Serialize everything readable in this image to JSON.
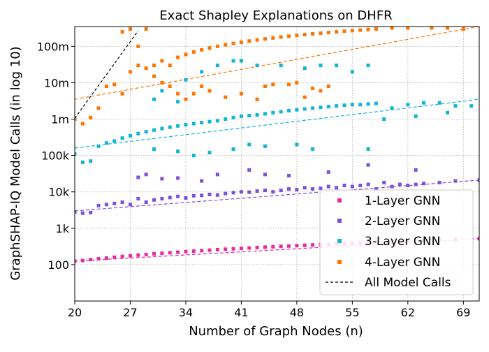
{
  "chart_data": {
    "type": "scatter",
    "title": "Exact Shapley Explanations on DHFR",
    "xlabel": "Number of Graph Nodes (n)",
    "ylabel": "GraphSHAP-IQ Model Calls (in log 10)",
    "xlim": [
      20,
      71
    ],
    "ylim": [
      10,
      350000000
    ],
    "yscale": "log",
    "grid": true,
    "legend_position": "lower-right",
    "x_ticks": [
      20,
      27,
      34,
      41,
      48,
      55,
      62,
      69
    ],
    "x_tick_labels": [
      "20",
      "27",
      "34",
      "41",
      "48",
      "55",
      "62",
      "69"
    ],
    "y_ticks": [
      100,
      1000,
      10000,
      100000,
      1000000,
      10000000,
      100000000
    ],
    "y_tick_labels": [
      "100",
      "1k",
      "10k",
      "100k",
      "1m",
      "10m",
      "100m"
    ],
    "series": [
      {
        "name": "1-Layer GNN",
        "color": "#e72ba0",
        "range": [
          20,
          71
        ],
        "points": [
          [
            20,
            125
          ],
          [
            21,
            130
          ],
          [
            22,
            138
          ],
          [
            23,
            145
          ],
          [
            24,
            152
          ],
          [
            25,
            160
          ],
          [
            26,
            168
          ],
          [
            27,
            175
          ],
          [
            28,
            183
          ],
          [
            29,
            190
          ],
          [
            30,
            198
          ],
          [
            31,
            205
          ],
          [
            32,
            212
          ],
          [
            33,
            220
          ],
          [
            34,
            228
          ],
          [
            35,
            235
          ],
          [
            36,
            243
          ],
          [
            37,
            250
          ],
          [
            38,
            258
          ],
          [
            39,
            265
          ],
          [
            40,
            272
          ],
          [
            41,
            280
          ],
          [
            42,
            287
          ],
          [
            43,
            295
          ],
          [
            44,
            303
          ],
          [
            45,
            310
          ],
          [
            46,
            318
          ],
          [
            47,
            325
          ],
          [
            48,
            333
          ],
          [
            49,
            340
          ],
          [
            50,
            348
          ],
          [
            51,
            356
          ],
          [
            52,
            364
          ],
          [
            53,
            372
          ],
          [
            54,
            380
          ],
          [
            55,
            388
          ],
          [
            56,
            396
          ],
          [
            57,
            404
          ],
          [
            58,
            412
          ],
          [
            60,
            428
          ],
          [
            62,
            444
          ],
          [
            64,
            460
          ],
          [
            66,
            478
          ],
          [
            68,
            495
          ],
          [
            71,
            520
          ]
        ],
        "trend": [
          [
            20,
            125
          ],
          [
            71,
            520
          ]
        ]
      },
      {
        "name": "2-Layer GNN",
        "color": "#7f4fd8",
        "range": [
          20,
          71
        ],
        "points": [
          [
            20,
            2800
          ],
          [
            21,
            2600
          ],
          [
            22,
            2700
          ],
          [
            23,
            4200
          ],
          [
            24,
            4500
          ],
          [
            25,
            4800
          ],
          [
            26,
            5200
          ],
          [
            27,
            4500
          ],
          [
            28,
            6500
          ],
          [
            29,
            5200
          ],
          [
            30,
            6000
          ],
          [
            31,
            6500
          ],
          [
            32,
            7000
          ],
          [
            33,
            7500
          ],
          [
            34,
            6800
          ],
          [
            35,
            7800
          ],
          [
            36,
            8000
          ],
          [
            37,
            8500
          ],
          [
            38,
            8200
          ],
          [
            39,
            9000
          ],
          [
            40,
            9500
          ],
          [
            41,
            10000
          ],
          [
            42,
            9800
          ],
          [
            43,
            10500
          ],
          [
            44,
            11000
          ],
          [
            45,
            10000
          ],
          [
            46,
            11000
          ],
          [
            47,
            12000
          ],
          [
            48,
            11500
          ],
          [
            49,
            13000
          ],
          [
            50,
            12000
          ],
          [
            51,
            12500
          ],
          [
            52,
            14000
          ],
          [
            53,
            13000
          ],
          [
            54,
            15000
          ],
          [
            55,
            14000
          ],
          [
            56,
            15000
          ],
          [
            57,
            16000
          ],
          [
            58,
            12000
          ],
          [
            59,
            18000
          ],
          [
            60,
            14000
          ],
          [
            61,
            16000
          ],
          [
            62,
            15000
          ],
          [
            63,
            16000
          ],
          [
            64,
            17000
          ],
          [
            66,
            18000
          ],
          [
            68,
            20000
          ],
          [
            71,
            21000
          ],
          [
            28,
            25000
          ],
          [
            29,
            30000
          ],
          [
            31,
            23000
          ],
          [
            33,
            24000
          ],
          [
            36,
            20000
          ],
          [
            38,
            30000
          ],
          [
            42,
            40000
          ],
          [
            44,
            30000
          ],
          [
            47,
            28000
          ],
          [
            52,
            35000
          ],
          [
            57,
            55000
          ],
          [
            63,
            40000
          ]
        ],
        "trend": [
          [
            20,
            3000
          ],
          [
            71,
            21000
          ]
        ]
      },
      {
        "name": "3-Layer GNN",
        "color": "#0fb5d6",
        "range": [
          20,
          71
        ],
        "points": [
          [
            20,
            110000
          ],
          [
            21,
            65000
          ],
          [
            22,
            70000
          ],
          [
            23,
            180000
          ],
          [
            24,
            220000
          ],
          [
            25,
            250000
          ],
          [
            26,
            300000
          ],
          [
            27,
            350000
          ],
          [
            28,
            400000
          ],
          [
            29,
            450000
          ],
          [
            30,
            500000
          ],
          [
            31,
            550000
          ],
          [
            32,
            600000
          ],
          [
            33,
            650000
          ],
          [
            34,
            700000
          ],
          [
            35,
            750000
          ],
          [
            36,
            800000
          ],
          [
            37,
            850000
          ],
          [
            38,
            900000
          ],
          [
            39,
            1000000
          ],
          [
            40,
            1100000
          ],
          [
            41,
            1200000
          ],
          [
            42,
            1250000
          ],
          [
            43,
            1300000
          ],
          [
            44,
            1400000
          ],
          [
            45,
            1500000
          ],
          [
            46,
            1600000
          ],
          [
            47,
            1700000
          ],
          [
            48,
            1800000
          ],
          [
            49,
            1900000
          ],
          [
            50,
            2000000
          ],
          [
            51,
            2100000
          ],
          [
            52,
            2200000
          ],
          [
            53,
            2300000
          ],
          [
            54,
            2400000
          ],
          [
            55,
            2500000
          ],
          [
            56,
            2500000
          ],
          [
            57,
            2600000
          ],
          [
            58,
            2700000
          ],
          [
            60,
            2000000
          ],
          [
            62,
            2500000
          ],
          [
            64,
            2800000
          ],
          [
            66,
            2800000
          ],
          [
            68,
            2300000
          ],
          [
            70,
            2300000
          ],
          [
            30,
            3500000
          ],
          [
            31,
            6000000
          ],
          [
            33,
            3000000
          ],
          [
            34,
            12000000
          ],
          [
            36,
            20000000
          ],
          [
            38,
            30000000
          ],
          [
            40,
            40000000
          ],
          [
            41,
            40000000
          ],
          [
            43,
            30000000
          ],
          [
            46,
            30000000
          ],
          [
            49,
            25000000
          ],
          [
            51,
            30000000
          ],
          [
            53,
            30000000
          ],
          [
            55,
            20000000
          ],
          [
            57,
            30000000
          ],
          [
            59,
            1000000
          ],
          [
            63,
            1200000
          ],
          [
            67,
            1500000
          ],
          [
            30,
            150000
          ],
          [
            33,
            130000
          ],
          [
            35,
            100000
          ],
          [
            37,
            120000
          ],
          [
            40,
            150000
          ],
          [
            42,
            200000
          ],
          [
            44,
            180000
          ],
          [
            48,
            200000
          ],
          [
            50,
            150000
          ],
          [
            57,
            150000
          ]
        ],
        "trend": [
          [
            20,
            160000
          ],
          [
            71,
            3500000
          ]
        ]
      },
      {
        "name": "4-Layer GNN",
        "color": "#ff7300",
        "range": [
          20,
          71
        ],
        "points": [
          [
            20,
            1000000
          ],
          [
            21,
            750000
          ],
          [
            22,
            1100000
          ],
          [
            23,
            2000000
          ],
          [
            24,
            8000000
          ],
          [
            25,
            9000000
          ],
          [
            26,
            5000000
          ],
          [
            27,
            20000000
          ],
          [
            28,
            30000000
          ],
          [
            29,
            25000000
          ],
          [
            30,
            30000000
          ],
          [
            31,
            40000000
          ],
          [
            32,
            30000000
          ],
          [
            33,
            50000000
          ],
          [
            34,
            60000000
          ],
          [
            35,
            70000000
          ],
          [
            36,
            80000000
          ],
          [
            37,
            90000000
          ],
          [
            38,
            100000000
          ],
          [
            39,
            110000000
          ],
          [
            40,
            120000000
          ],
          [
            41,
            130000000
          ],
          [
            42,
            140000000
          ],
          [
            43,
            150000000
          ],
          [
            44,
            160000000
          ],
          [
            45,
            170000000
          ],
          [
            46,
            180000000
          ],
          [
            47,
            190000000
          ],
          [
            48,
            200000000
          ],
          [
            49,
            210000000
          ],
          [
            50,
            220000000
          ],
          [
            51,
            230000000
          ],
          [
            52,
            240000000
          ],
          [
            53,
            250000000
          ],
          [
            54,
            260000000
          ],
          [
            55,
            270000000
          ],
          [
            56,
            280000000
          ],
          [
            57,
            290000000
          ],
          [
            58,
            300000000
          ],
          [
            60,
            320000000
          ],
          [
            62,
            320000000
          ],
          [
            65,
            320000000
          ],
          [
            67,
            320000000
          ],
          [
            69,
            300000000
          ],
          [
            26,
            250000000
          ],
          [
            27,
            300000000
          ],
          [
            28,
            100000000
          ],
          [
            29,
            300000000
          ],
          [
            30,
            15000000
          ],
          [
            31,
            10000000
          ],
          [
            32,
            8000000
          ],
          [
            33,
            5000000
          ],
          [
            34,
            3500000
          ],
          [
            35,
            5000000
          ],
          [
            36,
            8000000
          ],
          [
            37,
            6000000
          ],
          [
            39,
            4000000
          ],
          [
            41,
            5000000
          ],
          [
            43,
            3500000
          ],
          [
            44,
            8000000
          ],
          [
            45,
            9000000
          ],
          [
            47,
            9000000
          ],
          [
            48,
            10000000
          ],
          [
            49,
            4000000
          ],
          [
            50,
            7000000
          ],
          [
            51,
            6000000
          ],
          [
            52,
            8000000
          ]
        ],
        "trend": [
          [
            20,
            3500000
          ],
          [
            71,
            350000000
          ]
        ]
      }
    ],
    "reference_line": {
      "name": "All Model Calls",
      "color": "#000000",
      "points": [
        [
          20,
          1048576
        ],
        [
          28,
          268435456
        ]
      ]
    }
  }
}
